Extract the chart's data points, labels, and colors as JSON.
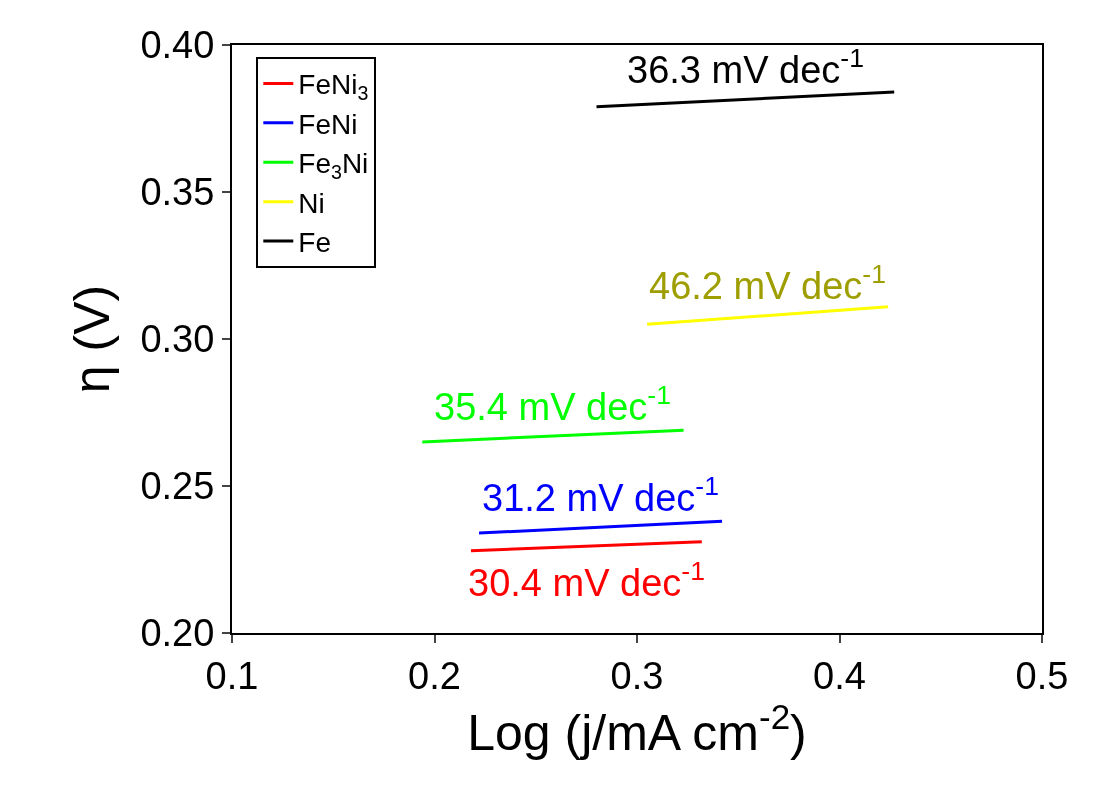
{
  "chart_data": {
    "type": "line",
    "xlabel": "Log (j/mA cm$^{-2}$)",
    "ylabel": "η (V)",
    "xlim": [
      0.1,
      0.5
    ],
    "xticks": [
      0.1,
      0.2,
      0.3,
      0.4,
      0.5
    ],
    "ylim": [
      0.2,
      0.4
    ],
    "yticks": [
      {
        "value": 0.2,
        "label": "0.20"
      },
      {
        "value": 0.25,
        "label": "0.25"
      },
      {
        "value": 0.3,
        "label": "0.30"
      },
      {
        "value": 0.35,
        "label": "0.35"
      },
      {
        "value": 0.4,
        "label": "0.40"
      }
    ],
    "legend": "top left",
    "marker": "none",
    "line_style": "solid",
    "series": [
      {
        "name": "FeNi$_{3}$",
        "color": "#ff0000",
        "x": [
          0.218,
          0.332
        ],
        "values": [
          0.228,
          0.231
        ]
      },
      {
        "name": "FeNi",
        "color": "#0000ff",
        "x": [
          0.222,
          0.342
        ],
        "values": [
          0.234,
          0.238
        ]
      },
      {
        "name": "Fe$_{3}$Ni",
        "color": "#00ff00",
        "x": [
          0.194,
          0.323
        ],
        "values": [
          0.265,
          0.269
        ]
      },
      {
        "name": "Ni",
        "color": "#ffff00",
        "x": [
          0.305,
          0.424
        ],
        "values": [
          0.305,
          0.311
        ]
      },
      {
        "name": "Fe",
        "color": "#000000",
        "x": [
          0.28,
          0.427
        ],
        "values": [
          0.379,
          0.384
        ]
      }
    ],
    "annotations": [
      "30.4 mV dec$^{-1}$",
      "31.2 mV dec$^{-1}$",
      "35.4 mV dec$^{-1}$",
      "46.2 mV dec$^{-1}$",
      "36.3 mV dec$^{-1}$"
    ]
  }
}
